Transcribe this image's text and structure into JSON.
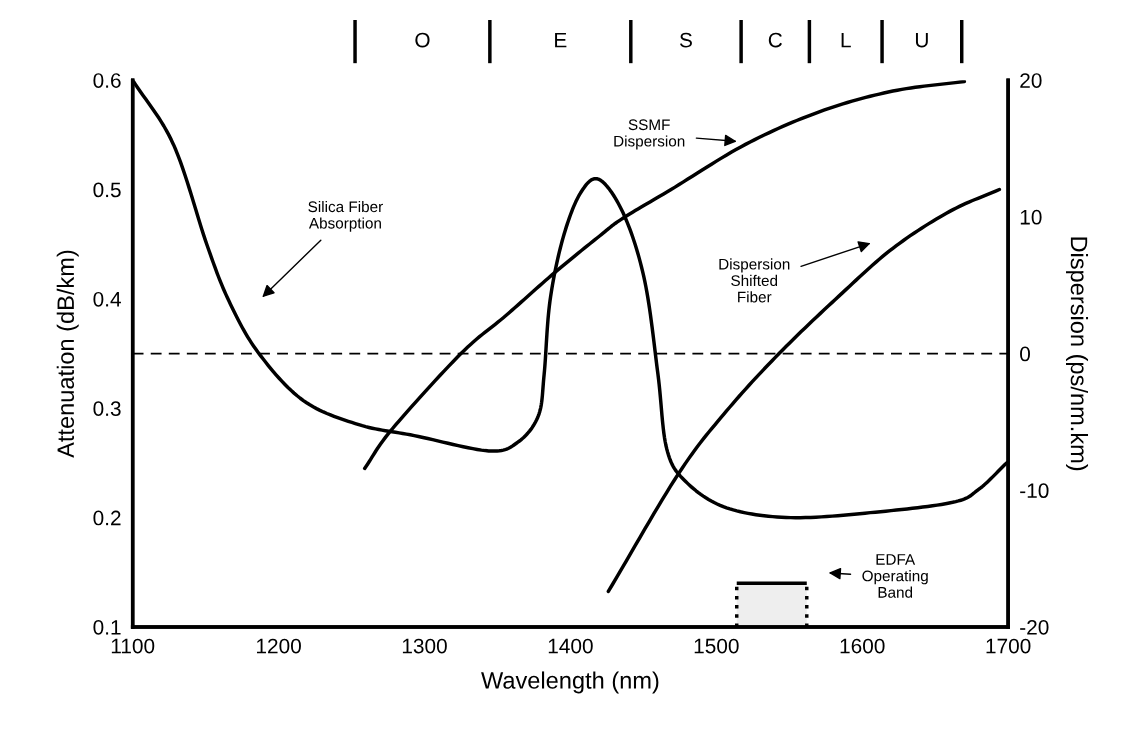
{
  "chart_data": {
    "type": "line",
    "xlabel": "Wavelength (nm)",
    "ylabel": "Attenuation (dB/km)",
    "y2label": "Dispersion (ps/nm.km)",
    "xlim": [
      1100,
      1700
    ],
    "xticks": [
      1100,
      1200,
      1300,
      1400,
      1500,
      1600,
      1700
    ],
    "ylim": [
      0.1,
      0.6
    ],
    "yticks": [
      0.1,
      0.2,
      0.3,
      0.4,
      0.5,
      0.6
    ],
    "y2lim": [
      -20,
      20
    ],
    "y2ticks": [
      -20,
      -10,
      0,
      10,
      20
    ],
    "series": [
      {
        "color": "#000000",
        "x": [
          1100,
          1128,
          1151,
          1166,
          1186,
          1217,
          1255,
          1293,
          1344,
          1364,
          1378,
          1382,
          1386,
          1395,
          1407,
          1420,
          1437,
          1451,
          1460,
          1466,
          1479,
          1507,
          1551,
          1609,
          1662,
          1680,
          1699
        ],
        "values": [
          0.6,
          0.541,
          0.449,
          0.398,
          0.351,
          0.307,
          0.285,
          0.275,
          0.261,
          0.269,
          0.293,
          0.331,
          0.398,
          0.456,
          0.497,
          0.509,
          0.476,
          0.416,
          0.331,
          0.263,
          0.233,
          0.209,
          0.2,
          0.205,
          0.214,
          0.226,
          0.25
        ]
      },
      {
        "color": "#000000",
        "axis": "y2",
        "x": [
          1259,
          1278,
          1325,
          1356,
          1389,
          1420,
          1436,
          1469,
          1520,
          1571,
          1621,
          1670
        ],
        "values": [
          -8.4,
          -5.5,
          0,
          2.8,
          5.9,
          8.6,
          9.9,
          12.0,
          15.3,
          17.7,
          19.2,
          19.9
        ]
      },
      {
        "color": "#000000",
        "axis": "y2",
        "x": [
          1426,
          1474,
          1507,
          1543,
          1584,
          1621,
          1660,
          1694
        ],
        "values": [
          -17.4,
          -8.8,
          -4.2,
          0,
          4.2,
          7.7,
          10.4,
          12.0
        ]
      }
    ],
    "ref_lines": [
      {
        "axis": "y2",
        "value": 0,
        "line_style": "dashed",
        "color": "#000000"
      }
    ],
    "bands": [
      {
        "axis": "x",
        "from": 1514,
        "to": 1562,
        "color": "#eeeeee"
      }
    ],
    "annotations": [
      "Silica Fiber\nAbsorption",
      "SSMF\nDispersion",
      "Dispersion\nShifted\nFiber",
      "EDFA\nOperating\nBand",
      "O",
      "E",
      "S",
      "C",
      "L",
      "U"
    ],
    "grid": false,
    "line_style": "solid",
    "marker": "none"
  }
}
